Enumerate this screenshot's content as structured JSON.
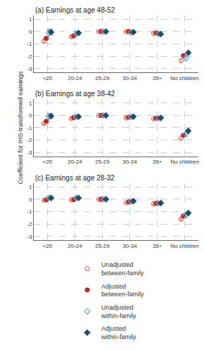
{
  "chart_data": [
    {
      "type": "scatter",
      "title": "(a) Earnings at age 48-52",
      "categories": [
        "<20",
        "20-24",
        "25-29",
        "30-34",
        "35+",
        "No children"
      ],
      "ylim": [
        -3.3,
        1.3
      ],
      "yticks": [
        -3,
        -2,
        -1,
        0,
        1
      ],
      "grid": true,
      "series": [
        {
          "name": "Unadjusted\nbetween-family",
          "color": "#e8735a",
          "marker": "circle-open",
          "values": [
            -0.78,
            -0.42,
            0.0,
            -0.02,
            -0.15,
            -2.35
          ],
          "yerr": [
            0.12,
            0.08,
            0.0,
            0.04,
            0.08,
            0.12
          ]
        },
        {
          "name": "Adjusted\nbetween-family",
          "color": "#cc2222",
          "marker": "circle",
          "values": [
            -0.55,
            -0.35,
            0.0,
            0.0,
            -0.12,
            -1.95
          ],
          "yerr": [
            0.08,
            0.06,
            0.0,
            0.03,
            0.06,
            0.1
          ]
        },
        {
          "name": "Unadjusted\nwithin-family",
          "color": "#5ba4c8",
          "marker": "diamond-open",
          "values": [
            -0.1,
            -0.18,
            0.0,
            -0.08,
            -0.18,
            -2.15
          ],
          "yerr": [
            0.3,
            0.18,
            0.0,
            0.12,
            0.15,
            0.2
          ]
        },
        {
          "name": "Adjusted\nwithin-family",
          "color": "#1d4f72",
          "marker": "diamond",
          "values": [
            -0.05,
            -0.12,
            0.0,
            -0.05,
            -0.2,
            -1.72
          ],
          "yerr": [
            0.22,
            0.14,
            0.0,
            0.09,
            0.12,
            0.16
          ]
        }
      ]
    },
    {
      "type": "scatter",
      "title": "(b) Earnings at age 38-42",
      "y_label": "Coefficient for IHS-transformed earnings",
      "categories": [
        "<20",
        "20-24",
        "25-29",
        "30-34",
        "35+",
        "No children"
      ],
      "ylim": [
        -3.3,
        1.3
      ],
      "yticks": [
        -3,
        -2,
        -1,
        0,
        1
      ],
      "grid": true,
      "series": [
        {
          "name": "Unadjusted\nbetween-family",
          "color": "#e8735a",
          "marker": "circle-open",
          "values": [
            -0.65,
            -0.25,
            0.0,
            -0.2,
            -0.28,
            -1.85
          ],
          "yerr": [
            0.1,
            0.07,
            0.0,
            0.05,
            0.07,
            0.12
          ]
        },
        {
          "name": "Adjusted\nbetween-family",
          "color": "#cc2222",
          "marker": "circle",
          "values": [
            -0.48,
            -0.18,
            0.0,
            -0.15,
            -0.22,
            -1.6
          ],
          "yerr": [
            0.08,
            0.05,
            0.0,
            0.04,
            0.05,
            0.1
          ]
        },
        {
          "name": "Unadjusted\nwithin-family",
          "color": "#5ba4c8",
          "marker": "diamond-open",
          "values": [
            -0.08,
            -0.12,
            0.0,
            -0.12,
            -0.22,
            -1.5
          ],
          "yerr": [
            0.25,
            0.15,
            0.0,
            0.1,
            0.14,
            0.22
          ]
        },
        {
          "name": "Adjusted\nwithin-family",
          "color": "#1d4f72",
          "marker": "diamond",
          "values": [
            -0.05,
            -0.1,
            0.0,
            -0.1,
            -0.2,
            -1.25
          ],
          "yerr": [
            0.18,
            0.12,
            0.0,
            0.08,
            0.1,
            0.16
          ]
        }
      ]
    },
    {
      "type": "scatter",
      "title": "(c) Earnings at age 28-32",
      "categories": [
        "<20",
        "20-24",
        "25-29",
        "30-34",
        "35+",
        "No children"
      ],
      "ylim": [
        -3.3,
        1.3
      ],
      "yticks": [
        -3,
        -2,
        -1,
        0,
        1
      ],
      "grid": true,
      "series": [
        {
          "name": "Unadjusted\nbetween-family",
          "color": "#e8735a",
          "marker": "circle-open",
          "values": [
            -0.08,
            -0.05,
            0.0,
            -0.28,
            -0.38,
            -1.6
          ],
          "yerr": [
            0.07,
            0.05,
            0.0,
            0.05,
            0.07,
            0.1
          ]
        },
        {
          "name": "Adjusted\nbetween-family",
          "color": "#cc2222",
          "marker": "circle",
          "values": [
            -0.05,
            -0.03,
            0.0,
            -0.22,
            -0.33,
            -1.35
          ],
          "yerr": [
            0.05,
            0.04,
            0.0,
            0.04,
            0.05,
            0.08
          ]
        },
        {
          "name": "Unadjusted\nwithin-family",
          "color": "#5ba4c8",
          "marker": "diamond-open",
          "values": [
            0.12,
            0.12,
            0.0,
            -0.18,
            -0.32,
            -1.28
          ],
          "yerr": [
            0.15,
            0.12,
            0.0,
            0.1,
            0.12,
            0.18
          ]
        },
        {
          "name": "Adjusted\nwithin-family",
          "color": "#1d4f72",
          "marker": "diamond",
          "values": [
            0.1,
            0.1,
            0.0,
            -0.15,
            -0.3,
            -1.12
          ],
          "yerr": [
            0.12,
            0.1,
            0.0,
            0.08,
            0.1,
            0.14
          ]
        }
      ]
    }
  ]
}
